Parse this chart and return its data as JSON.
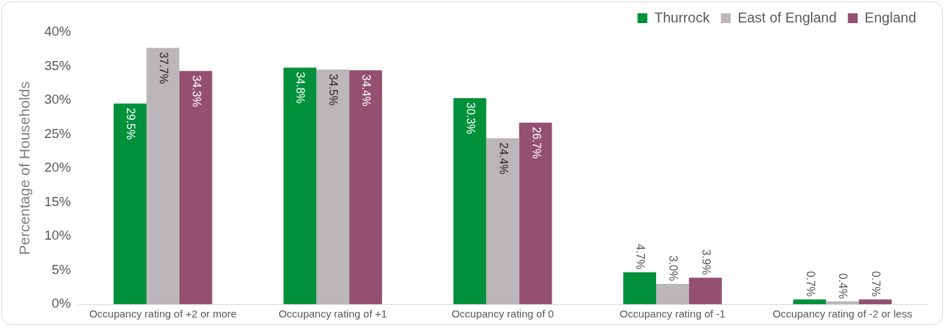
{
  "chart_data": {
    "type": "bar",
    "ylabel": "Percentage of Households",
    "categories": [
      "Occupancy rating of +2 or more",
      "Occupancy rating of +1",
      "Occupancy rating of 0",
      "Occupancy rating of -1",
      "Occupancy rating of -2 or less"
    ],
    "series": [
      {
        "name": "Thurrock",
        "color": "#00913a",
        "values": [
          29.5,
          34.8,
          30.3,
          4.7,
          0.7
        ],
        "value_labels": [
          "29.5%",
          "34.8%",
          "30.3%",
          "4.7%",
          "0.7%"
        ]
      },
      {
        "name": "East of England",
        "color": "#bbb6b9",
        "values": [
          37.7,
          34.5,
          24.4,
          3.0,
          0.4
        ],
        "value_labels": [
          "37.7%",
          "34.5%",
          "24.4%",
          "3.0%",
          "0.4%"
        ]
      },
      {
        "name": "England",
        "color": "#944f71",
        "values": [
          34.3,
          34.4,
          26.7,
          3.9,
          0.7
        ],
        "value_labels": [
          "34.3%",
          "34.4%",
          "26.7%",
          "3.9%",
          "0.7%"
        ]
      }
    ],
    "ylim": [
      0,
      40
    ],
    "yticks": [
      {
        "value": 0,
        "label": "0%"
      },
      {
        "value": 5,
        "label": "5%"
      },
      {
        "value": 10,
        "label": "10%"
      },
      {
        "value": 15,
        "label": "15%"
      },
      {
        "value": 20,
        "label": "20%"
      },
      {
        "value": 25,
        "label": "25%"
      },
      {
        "value": 30,
        "label": "30%"
      },
      {
        "value": 35,
        "label": "35%"
      },
      {
        "value": 40,
        "label": "40%"
      }
    ],
    "grid": false,
    "legend": "top right"
  }
}
